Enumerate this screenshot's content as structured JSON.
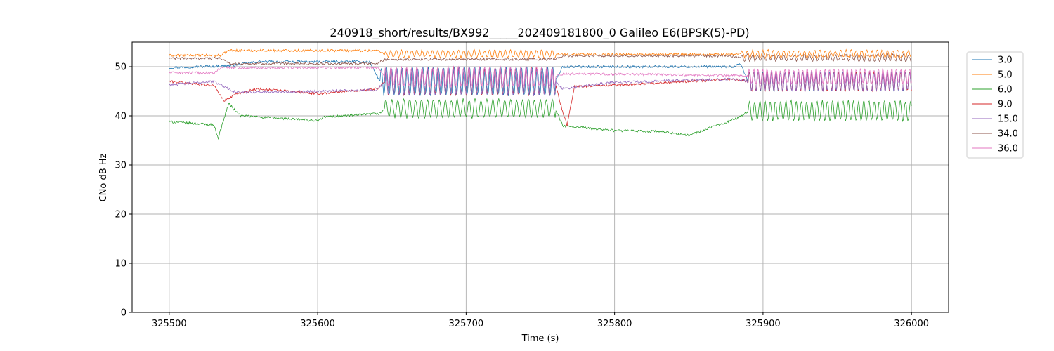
{
  "chart_data": {
    "type": "line",
    "title": "240918_short/results/BX992_____202409181800_0 Galileo E6(BPSK(5)-PD)",
    "xlabel": "Time (s)",
    "ylabel": "CNo dB Hz",
    "xlim": [
      325475,
      326025
    ],
    "ylim": [
      0,
      55
    ],
    "xticks": [
      325500,
      325600,
      325700,
      325800,
      325900,
      326000
    ],
    "yticks": [
      0,
      10,
      20,
      30,
      40,
      50
    ],
    "grid": true,
    "legend_position": "upper-right-outside",
    "series": [
      {
        "name": "3.0",
        "color": "#1f77b4",
        "points": [
          [
            325500,
            49.8
          ],
          [
            325540,
            50.2
          ],
          [
            325560,
            51.0
          ],
          [
            325600,
            51.0
          ],
          [
            325635,
            51.0
          ],
          [
            325642,
            47.0
          ],
          [
            325760,
            47.0
          ],
          [
            325765,
            50.0
          ],
          [
            325800,
            50.0
          ],
          [
            325880,
            50.0
          ],
          [
            325885,
            50.5
          ],
          [
            325890,
            47.0
          ],
          [
            326000,
            47.0
          ]
        ],
        "osc": [
          [
            325642,
            325760,
            2.8,
            3.5
          ],
          [
            325890,
            326000,
            2.0,
            3.0
          ]
        ]
      },
      {
        "name": "5.0",
        "color": "#ff7f0e",
        "points": [
          [
            325500,
            52.3
          ],
          [
            325535,
            52.3
          ],
          [
            325540,
            53.3
          ],
          [
            325640,
            53.3
          ],
          [
            325645,
            52.6
          ],
          [
            325760,
            52.6
          ],
          [
            325765,
            52.5
          ],
          [
            325880,
            52.5
          ],
          [
            325885,
            52.6
          ],
          [
            326000,
            52.6
          ]
        ],
        "osc": [
          [
            325645,
            325760,
            0.7,
            3.5
          ],
          [
            325885,
            326000,
            0.7,
            3.5
          ]
        ]
      },
      {
        "name": "6.0",
        "color": "#2ca02c",
        "points": [
          [
            325500,
            38.8
          ],
          [
            325530,
            38.2
          ],
          [
            325533,
            35.5
          ],
          [
            325540,
            42.5
          ],
          [
            325548,
            40.0
          ],
          [
            325600,
            39.0
          ],
          [
            325605,
            39.8
          ],
          [
            325630,
            40.2
          ],
          [
            325642,
            40.5
          ],
          [
            325645,
            41.5
          ],
          [
            325760,
            41.5
          ],
          [
            325765,
            38.0
          ],
          [
            325770,
            37.8
          ],
          [
            325800,
            37.0
          ],
          [
            325830,
            36.8
          ],
          [
            325850,
            36.0
          ],
          [
            325885,
            39.8
          ],
          [
            325890,
            41.0
          ],
          [
            326000,
            41.0
          ]
        ],
        "osc": [
          [
            325645,
            325760,
            1.8,
            4.0
          ],
          [
            325890,
            326000,
            2.0,
            3.5
          ]
        ]
      },
      {
        "name": "9.0",
        "color": "#d62728",
        "points": [
          [
            325500,
            47.0
          ],
          [
            325530,
            46.2
          ],
          [
            325537,
            43.0
          ],
          [
            325545,
            44.5
          ],
          [
            325560,
            45.5
          ],
          [
            325600,
            44.5
          ],
          [
            325640,
            45.5
          ],
          [
            325645,
            47.0
          ],
          [
            325760,
            47.0
          ],
          [
            325763,
            43.0
          ],
          [
            325768,
            38.0
          ],
          [
            325773,
            46.0
          ],
          [
            325800,
            46.2
          ],
          [
            325880,
            47.5
          ],
          [
            325890,
            47.0
          ],
          [
            326000,
            47.0
          ]
        ],
        "osc": [
          [
            325645,
            325760,
            2.8,
            3.5
          ],
          [
            325890,
            326000,
            2.0,
            3.0
          ]
        ]
      },
      {
        "name": "15.0",
        "color": "#9467bd",
        "points": [
          [
            325500,
            46.3
          ],
          [
            325530,
            47.0
          ],
          [
            325545,
            44.8
          ],
          [
            325600,
            45.0
          ],
          [
            325640,
            45.3
          ],
          [
            325645,
            47.0
          ],
          [
            325760,
            47.0
          ],
          [
            325765,
            45.5
          ],
          [
            325790,
            46.5
          ],
          [
            325800,
            46.8
          ],
          [
            325880,
            47.5
          ],
          [
            325890,
            47.0
          ],
          [
            326000,
            47.0
          ]
        ],
        "osc": [
          [
            325645,
            325760,
            2.8,
            3.5
          ],
          [
            325890,
            326000,
            2.0,
            3.0
          ]
        ]
      },
      {
        "name": "34.0",
        "color": "#8c564b",
        "points": [
          [
            325500,
            51.7
          ],
          [
            325535,
            51.7
          ],
          [
            325540,
            50.6
          ],
          [
            325640,
            50.6
          ],
          [
            325645,
            51.5
          ],
          [
            325760,
            51.5
          ],
          [
            325765,
            52.2
          ],
          [
            325880,
            52.2
          ],
          [
            325885,
            51.8
          ],
          [
            326000,
            51.8
          ]
        ],
        "osc": [
          [
            325885,
            326000,
            0.6,
            3.5
          ]
        ]
      },
      {
        "name": "36.0",
        "color": "#e377c2",
        "points": [
          [
            325500,
            48.8
          ],
          [
            325530,
            48.7
          ],
          [
            325535,
            49.8
          ],
          [
            325600,
            49.8
          ],
          [
            325640,
            49.8
          ],
          [
            325645,
            48.0
          ],
          [
            325760,
            48.0
          ],
          [
            325765,
            48.5
          ],
          [
            325800,
            48.5
          ],
          [
            325880,
            48.2
          ],
          [
            325890,
            48.0
          ],
          [
            326000,
            48.0
          ]
        ],
        "osc": [
          [
            325645,
            325760,
            2.0,
            3.5
          ],
          [
            325890,
            326000,
            1.5,
            3.0
          ]
        ]
      }
    ]
  }
}
